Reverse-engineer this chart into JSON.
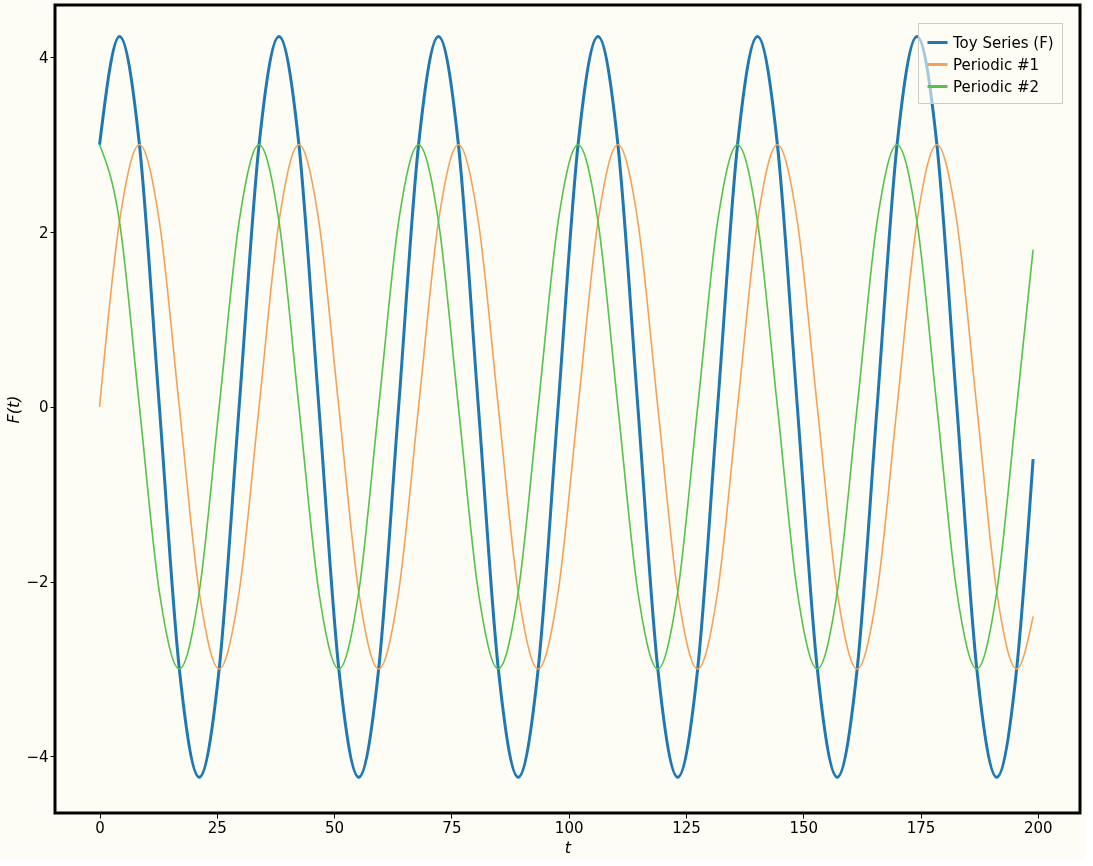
{
  "chart_data": {
    "type": "line",
    "xlabel": "t",
    "ylabel": "F(t)",
    "x": [
      0,
      4.25,
      8.5,
      12.75,
      17,
      21.25,
      25.5,
      29.75,
      34,
      38.25,
      42.5,
      46.75,
      51,
      55.25,
      59.5,
      63.75,
      68,
      72.25,
      76.5,
      80.75,
      85,
      89.25,
      93.5,
      97.75,
      102,
      106.25,
      110.5,
      114.75,
      119,
      123.25,
      127.5,
      131.75,
      136,
      140.25,
      144.5,
      148.75,
      153,
      157.25,
      161.5,
      165.75,
      170,
      174.25,
      178.5,
      182.75,
      187,
      191.25,
      195.5,
      199
    ],
    "series": [
      {
        "name": "Toy Series (F)",
        "color": "#1f77b4",
        "values": [
          3,
          4.24,
          3,
          0,
          -3,
          -4.24,
          -3,
          0,
          3,
          4.24,
          3,
          0,
          -3,
          -4.24,
          -3,
          0,
          3,
          4.24,
          3,
          0,
          -3,
          -4.24,
          -3,
          0,
          3,
          4.24,
          3,
          0,
          -3,
          -4.24,
          -3,
          0,
          3,
          4.24,
          3,
          0,
          -3,
          -4.24,
          -3,
          0,
          3,
          4.24,
          3,
          0,
          -3,
          -4.24,
          -3,
          -0.6
        ]
      },
      {
        "name": "Periodic #1",
        "color": "#f4a259",
        "values": [
          0,
          2.12,
          3,
          2.12,
          0,
          -2.12,
          -3,
          -2.12,
          0,
          2.12,
          3,
          2.12,
          0,
          -2.12,
          -3,
          -2.12,
          0,
          2.12,
          3,
          2.12,
          0,
          -2.12,
          -3,
          -2.12,
          0,
          2.12,
          3,
          2.12,
          0,
          -2.12,
          -3,
          -2.12,
          0,
          2.12,
          3,
          2.12,
          0,
          -2.12,
          -3,
          -2.12,
          0,
          2.12,
          3,
          2.12,
          0,
          -2.12,
          -3,
          -2.4
        ]
      },
      {
        "name": "Periodic #2",
        "color": "#55c24a",
        "values": [
          3,
          2.12,
          0,
          -2.12,
          -3,
          -2.12,
          0,
          2.12,
          3,
          2.12,
          0,
          -2.12,
          -3,
          -2.12,
          0,
          2.12,
          3,
          2.12,
          0,
          -2.12,
          -3,
          -2.12,
          0,
          2.12,
          3,
          2.12,
          0,
          -2.12,
          -3,
          -2.12,
          0,
          2.12,
          3,
          2.12,
          0,
          -2.12,
          -3,
          -2.12,
          0,
          2.12,
          3,
          2.12,
          0,
          -2.12,
          -3,
          -2.12,
          0,
          1.8
        ]
      }
    ],
    "xlim": [
      -9.5,
      209
    ],
    "ylim": [
      -4.65,
      4.6
    ],
    "xticks": [
      0,
      25,
      50,
      75,
      100,
      125,
      150,
      175,
      200
    ],
    "yticks": [
      {
        "value": -4,
        "label": "−4"
      },
      {
        "value": -2,
        "label": "−2"
      },
      0,
      2,
      4
    ],
    "grid": false,
    "legend": "top right",
    "marker": "none",
    "line_style": "solid"
  }
}
